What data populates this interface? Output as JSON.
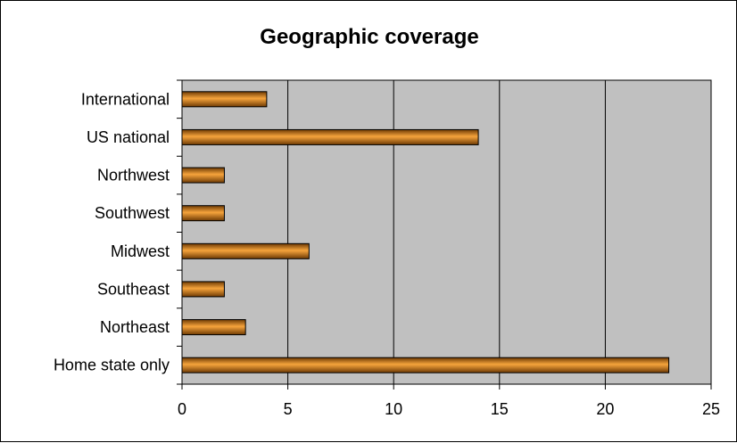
{
  "chart_data": {
    "type": "bar",
    "orientation": "horizontal",
    "title": "Geographic coverage",
    "xlabel": "",
    "ylabel": "",
    "categories": [
      "International",
      "US national",
      "Northwest",
      "Southwest",
      "Midwest",
      "Southeast",
      "Northeast",
      "Home state only"
    ],
    "values": [
      4,
      14,
      2,
      2,
      6,
      2,
      3,
      23
    ],
    "xlim": [
      0,
      25
    ],
    "xticks": [
      0,
      5,
      10,
      15,
      20,
      25
    ],
    "grid": "vertical",
    "legend": "none",
    "colors": {
      "plot_background": "#c0c0c0",
      "bar_light": "#f6a43c",
      "bar_dark": "#6e3a04",
      "gridline": "#000000"
    }
  }
}
